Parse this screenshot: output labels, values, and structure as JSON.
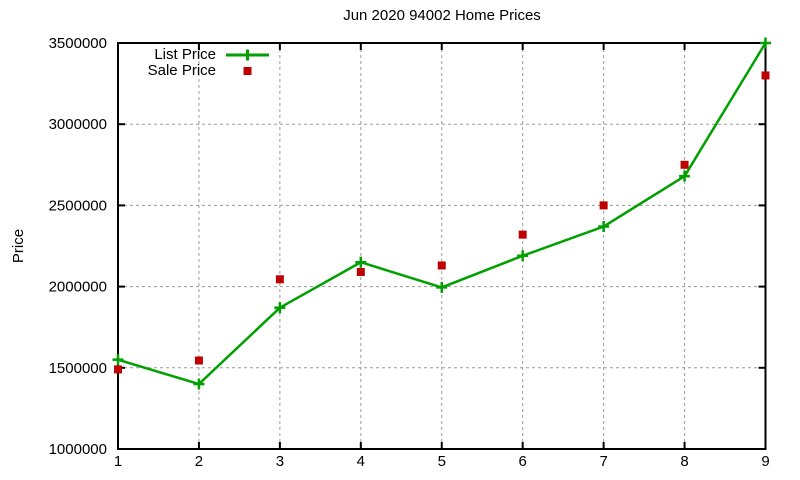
{
  "chart_data": {
    "type": "line",
    "title": "Jun 2020 94002 Home Prices",
    "xlabel": "",
    "ylabel": "Price",
    "x": [
      1,
      2,
      3,
      4,
      5,
      6,
      7,
      8,
      9
    ],
    "series": [
      {
        "name": "List Price",
        "style": "line-with-plus-markers",
        "color": "#00a000",
        "values": [
          1550000,
          1400000,
          1870000,
          2150000,
          1995000,
          2190000,
          2370000,
          2680000,
          3500000
        ]
      },
      {
        "name": "Sale Price",
        "style": "square-points",
        "color": "#c00000",
        "values": [
          1490000,
          1545000,
          2045000,
          2090000,
          2130000,
          2320000,
          2500000,
          2750000,
          3300000
        ]
      }
    ],
    "xlim": [
      1,
      9
    ],
    "ylim": [
      1000000,
      3500000
    ],
    "x_ticks": [
      1,
      2,
      3,
      4,
      5,
      6,
      7,
      8,
      9
    ],
    "y_ticks": [
      1000000,
      1500000,
      2000000,
      2500000,
      3000000,
      3500000
    ],
    "grid": true,
    "legend_position": "top-left-inside",
    "colors": {
      "background": "#ffffff",
      "grid": "#9a9a9a",
      "axis": "#000000",
      "text": "#000000"
    }
  }
}
